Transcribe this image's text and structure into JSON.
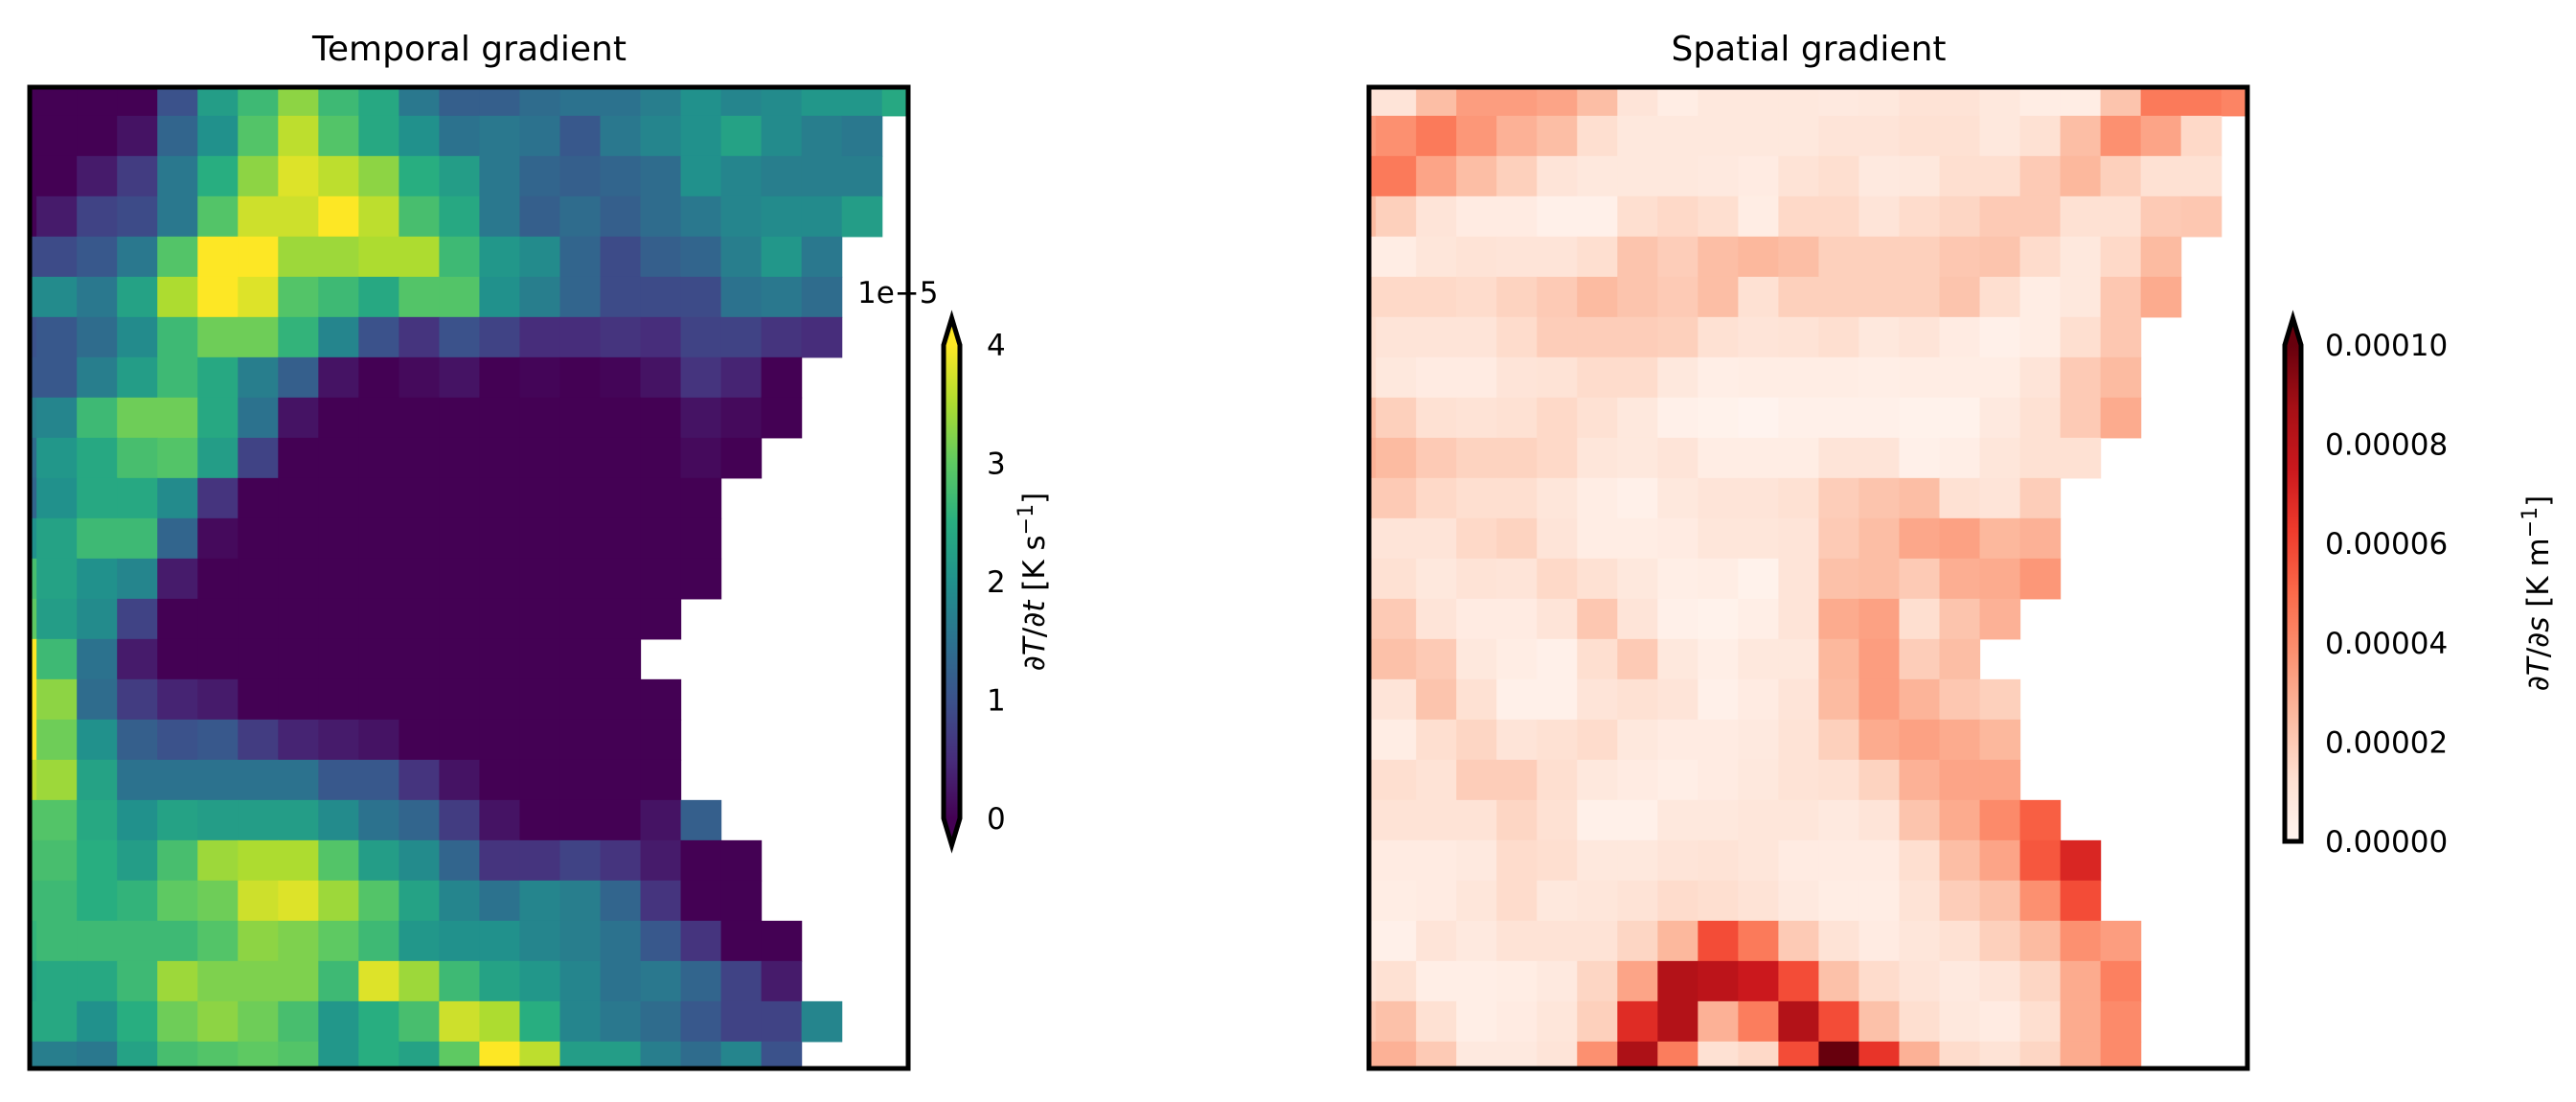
{
  "chart_data": [
    {
      "type": "heatmap",
      "title": "Temporal gradient",
      "colormap": "viridis",
      "value_multiplier": 1e-05,
      "vmin": 0,
      "vmax": 4,
      "colorbar": {
        "offset_text": "1e−5",
        "ticks": [
          0,
          1,
          2,
          3,
          4
        ],
        "tick_labels": [
          "0",
          "1",
          "2",
          "3",
          "4"
        ],
        "extend": "both",
        "label_parts": [
          "∂",
          "T",
          "/∂",
          "t",
          " [K s",
          "−1",
          "]"
        ]
      },
      "missing_color": "#ffffff",
      "rows": [
        [
          0,
          0,
          0,
          0,
          1.0,
          2.2,
          2.7,
          3.3,
          2.7,
          2.4,
          1.6,
          1.2,
          1.2,
          1.4,
          1.5,
          1.5,
          1.7,
          2.0,
          1.8,
          1.9,
          2.1,
          2.1,
          2.4
        ],
        [
          0,
          0,
          0,
          0.2,
          1.3,
          2.0,
          2.9,
          3.6,
          2.9,
          2.4,
          2.0,
          1.5,
          1.6,
          1.5,
          1.1,
          1.6,
          1.8,
          2.0,
          2.3,
          1.9,
          1.7,
          1.6,
          null
        ],
        [
          0,
          0,
          0.3,
          0.7,
          1.6,
          2.5,
          3.3,
          3.8,
          3.6,
          3.3,
          2.5,
          2.2,
          1.6,
          1.3,
          1.2,
          1.3,
          1.4,
          2.0,
          1.8,
          1.7,
          1.7,
          1.7,
          null
        ],
        [
          0,
          0.3,
          0.8,
          0.9,
          1.6,
          2.9,
          3.7,
          3.7,
          4.0,
          3.6,
          2.8,
          2.4,
          1.6,
          1.2,
          1.4,
          1.2,
          1.4,
          1.6,
          1.8,
          1.9,
          1.9,
          2.2,
          null
        ],
        [
          0.9,
          0.9,
          1.1,
          1.6,
          2.9,
          4.0,
          4.0,
          3.4,
          3.4,
          3.5,
          3.5,
          2.7,
          2.1,
          1.9,
          1.3,
          0.9,
          1.2,
          1.3,
          1.7,
          2.1,
          1.6,
          null,
          null
        ],
        [
          1.9,
          1.9,
          1.6,
          2.3,
          3.5,
          4.0,
          3.8,
          2.9,
          2.7,
          2.4,
          2.9,
          2.9,
          2.0,
          1.7,
          1.3,
          0.9,
          0.9,
          0.9,
          1.5,
          1.6,
          1.4,
          null,
          null
        ],
        [
          1.0,
          1.1,
          1.4,
          1.9,
          2.7,
          3.1,
          3.1,
          2.6,
          1.8,
          1.0,
          0.6,
          1.0,
          0.8,
          0.5,
          0.5,
          0.6,
          0.5,
          0.8,
          0.8,
          0.6,
          0.5,
          null,
          null
        ],
        [
          1.1,
          1.1,
          1.7,
          2.2,
          2.7,
          2.4,
          1.7,
          1.2,
          0.2,
          0,
          0.1,
          0.2,
          0,
          0.05,
          0,
          0.05,
          0.2,
          0.6,
          0.4,
          0,
          null,
          null,
          null
        ],
        [
          1.7,
          1.8,
          2.7,
          3.1,
          3.1,
          2.4,
          1.5,
          0.2,
          0,
          0,
          0,
          0,
          0,
          0,
          0,
          0,
          0,
          0.2,
          0.1,
          0,
          null,
          null,
          null
        ],
        [
          1.4,
          2.1,
          2.4,
          2.8,
          2.9,
          2.2,
          0.8,
          0,
          0,
          0,
          0,
          0,
          0,
          0,
          0,
          0,
          0,
          0.1,
          0,
          null,
          null,
          null,
          null
        ],
        [
          1.3,
          2.0,
          2.4,
          2.4,
          1.9,
          0.6,
          0,
          0,
          0,
          0,
          0,
          0,
          0,
          0,
          0,
          0,
          0,
          0,
          null,
          null,
          null,
          null,
          null
        ],
        [
          2.0,
          2.3,
          2.7,
          2.7,
          1.3,
          0.1,
          0,
          0,
          0,
          0,
          0,
          0,
          0,
          0,
          0,
          0,
          0,
          0,
          null,
          null,
          null,
          null,
          null
        ],
        [
          2.8,
          2.3,
          2.0,
          1.8,
          0.3,
          0,
          0,
          0,
          0,
          0,
          0,
          0,
          0,
          0,
          0,
          0,
          0,
          0,
          null,
          null,
          null,
          null,
          null
        ],
        [
          3.0,
          2.2,
          1.9,
          0.8,
          0,
          0,
          0,
          0,
          0,
          0,
          0,
          0,
          0,
          0,
          0,
          0,
          0,
          null,
          null,
          null,
          null,
          null,
          null
        ],
        [
          4.0,
          2.7,
          1.5,
          0.3,
          0,
          0,
          0,
          0,
          0,
          0,
          0,
          0,
          0,
          0,
          0,
          0,
          null,
          null,
          null,
          null,
          null,
          null,
          null
        ],
        [
          4.0,
          3.3,
          1.4,
          0.7,
          0.4,
          0.3,
          0,
          0,
          0,
          0,
          0,
          0,
          0,
          0,
          0,
          0,
          0,
          null,
          null,
          null,
          null,
          null,
          null
        ],
        [
          4.0,
          3.1,
          2.0,
          1.2,
          1.0,
          1.1,
          0.7,
          0.4,
          0.3,
          0.2,
          0,
          0,
          0,
          0,
          0,
          0,
          0,
          null,
          null,
          null,
          null,
          null,
          null
        ],
        [
          3.6,
          3.4,
          2.3,
          1.5,
          1.5,
          1.5,
          1.5,
          1.5,
          1.1,
          1.1,
          0.6,
          0.2,
          0,
          0,
          0,
          0,
          0,
          null,
          null,
          null,
          null,
          null,
          null
        ],
        [
          2.9,
          2.9,
          2.4,
          2.0,
          2.3,
          2.2,
          2.2,
          2.2,
          1.9,
          1.5,
          1.3,
          0.7,
          0.2,
          0,
          0,
          0,
          0.2,
          1.2,
          null,
          null,
          null,
          null,
          null
        ],
        [
          2.8,
          2.8,
          2.5,
          2.2,
          2.8,
          3.4,
          3.5,
          3.5,
          2.9,
          2.2,
          1.9,
          1.3,
          0.6,
          0.6,
          0.8,
          0.6,
          0.3,
          0,
          0,
          null,
          null,
          null,
          null
        ],
        [
          2.7,
          2.7,
          2.5,
          2.6,
          3.0,
          3.1,
          3.7,
          3.8,
          3.4,
          2.9,
          2.3,
          1.8,
          1.5,
          1.8,
          1.7,
          1.3,
          0.6,
          0,
          0,
          null,
          null,
          null,
          null
        ],
        [
          2.6,
          2.7,
          2.7,
          2.7,
          2.7,
          2.9,
          3.3,
          3.2,
          3.0,
          2.7,
          2.1,
          2.0,
          2.0,
          1.8,
          1.7,
          1.5,
          1.1,
          0.6,
          0,
          0,
          null,
          null,
          null
        ],
        [
          2.3,
          2.4,
          2.4,
          2.7,
          3.4,
          3.2,
          3.2,
          3.2,
          2.7,
          3.8,
          3.4,
          2.7,
          2.3,
          2.1,
          1.8,
          1.5,
          1.6,
          1.3,
          0.8,
          0.3,
          null,
          null,
          null
        ],
        [
          2.4,
          2.4,
          2.0,
          2.5,
          3.1,
          3.3,
          3.1,
          2.8,
          2.1,
          2.5,
          2.8,
          3.7,
          3.5,
          2.5,
          1.8,
          1.6,
          1.4,
          1.1,
          0.8,
          0.8,
          1.8,
          null,
          null
        ],
        [
          1.7,
          1.7,
          1.6,
          2.3,
          2.8,
          2.9,
          3.0,
          2.9,
          2.1,
          2.5,
          2.3,
          3.0,
          4.0,
          3.6,
          2.2,
          2.2,
          1.7,
          1.4,
          1.8,
          1.0,
          null,
          null,
          null
        ]
      ]
    },
    {
      "type": "heatmap",
      "title": "Spatial gradient",
      "colormap": "Reds",
      "value_multiplier": 1e-05,
      "vmin": 0,
      "vmax": 10,
      "colorbar": {
        "ticks": [
          0,
          2,
          4,
          6,
          8,
          10
        ],
        "tick_labels": [
          "0.00000",
          "0.00002",
          "0.00004",
          "0.00006",
          "0.00008",
          "0.00010"
        ],
        "extend": "max",
        "label_parts": [
          "∂",
          "T",
          "/∂",
          "s",
          " [K m",
          "−1",
          "]"
        ]
      },
      "missing_color": "#ffffff",
      "rows": [
        [
          1.0,
          1.0,
          2.4,
          3.4,
          3.4,
          3.2,
          2.4,
          1.0,
          0.5,
          0.8,
          0.8,
          0.8,
          0.7,
          0.8,
          1.1,
          1.1,
          0.8,
          0.5,
          0.5,
          2.2,
          4.5,
          4.5,
          4.2
        ],
        [
          3.5,
          3.8,
          4.5,
          3.6,
          2.8,
          2.4,
          1.3,
          0.8,
          0.8,
          0.8,
          0.8,
          0.8,
          1.0,
          1.0,
          1.2,
          1.2,
          0.8,
          1.2,
          2.4,
          3.8,
          3.2,
          1.5
        ],
        [
          4.5,
          4.5,
          3.2,
          2.4,
          1.8,
          1.0,
          0.8,
          0.8,
          0.8,
          0.7,
          0.6,
          1.1,
          1.3,
          0.7,
          0.8,
          1.3,
          1.3,
          2.0,
          2.6,
          1.8,
          1.2,
          1.2
        ],
        [
          2.5,
          1.8,
          1.0,
          0.6,
          0.6,
          0.3,
          0.3,
          1.3,
          1.5,
          1.3,
          0.5,
          1.5,
          1.5,
          1.0,
          1.4,
          1.6,
          2.0,
          2.0,
          1.2,
          1.2,
          2.0,
          2.1
        ],
        [
          0.5,
          0.5,
          0.9,
          1.1,
          1.0,
          1.0,
          1.3,
          2.2,
          1.9,
          2.4,
          2.6,
          2.4,
          1.8,
          1.8,
          1.8,
          2.1,
          2.2,
          1.4,
          0.8,
          1.5,
          2.5
        ],
        [
          1.5,
          1.5,
          1.5,
          1.4,
          1.7,
          2.0,
          2.5,
          2.2,
          2.0,
          2.4,
          1.2,
          1.8,
          1.8,
          1.8,
          1.8,
          2.2,
          1.3,
          0.5,
          0.8,
          2.1,
          3.0
        ],
        [
          1.3,
          1.0,
          1.0,
          1.0,
          1.4,
          1.9,
          1.9,
          1.9,
          1.8,
          1.2,
          1.0,
          1.1,
          1.3,
          0.8,
          1.0,
          0.6,
          0.3,
          0.5,
          1.3,
          2.1
        ],
        [
          1.3,
          0.8,
          0.6,
          0.6,
          1.0,
          1.1,
          1.4,
          1.4,
          0.8,
          0.4,
          0.5,
          0.5,
          0.5,
          0.4,
          0.5,
          0.5,
          0.5,
          1.0,
          2.0,
          2.5
        ],
        [
          2.5,
          1.8,
          1.2,
          1.1,
          1.2,
          1.5,
          1.2,
          0.8,
          0.3,
          0.2,
          0.1,
          0.3,
          0.3,
          0.3,
          0.2,
          0.2,
          0.7,
          1.2,
          2.0,
          3.0
        ],
        [
          2.8,
          2.5,
          2.0,
          1.7,
          1.7,
          1.5,
          0.9,
          0.8,
          1.0,
          0.5,
          0.5,
          0.5,
          1.0,
          1.0,
          0.3,
          0.4,
          0.9,
          1.2,
          1.2
        ],
        [
          2.0,
          2.0,
          1.5,
          1.3,
          1.3,
          0.9,
          0.5,
          0.3,
          0.8,
          1.0,
          1.0,
          1.2,
          1.9,
          2.2,
          2.4,
          1.2,
          1.0,
          1.9
        ],
        [
          1.0,
          1.0,
          1.0,
          1.5,
          1.7,
          1.0,
          0.5,
          0.5,
          0.6,
          0.9,
          0.9,
          1.0,
          2.0,
          2.4,
          3.1,
          3.3,
          2.6,
          2.8
        ],
        [
          1.2,
          1.2,
          0.8,
          1.1,
          1.0,
          1.5,
          1.2,
          0.8,
          0.4,
          0.5,
          0.2,
          1.0,
          2.3,
          2.4,
          2.0,
          2.9,
          3.0,
          3.6
        ],
        [
          2.0,
          2.0,
          1.0,
          0.6,
          0.6,
          1.0,
          2.1,
          1.0,
          0.3,
          0.2,
          0.4,
          1.0,
          3.0,
          3.3,
          1.3,
          2.2,
          2.8
        ],
        [
          2.3,
          2.3,
          2.0,
          0.8,
          0.5,
          0.3,
          1.3,
          2.0,
          0.8,
          0.4,
          0.8,
          0.8,
          2.6,
          3.4,
          1.9,
          2.4
        ],
        [
          1.0,
          1.0,
          2.2,
          1.2,
          0.3,
          0.3,
          1.0,
          1.2,
          1.0,
          0.3,
          0.6,
          1.0,
          2.5,
          3.4,
          2.7,
          2.1,
          1.8
        ],
        [
          0.5,
          0.5,
          1.3,
          1.6,
          1.0,
          1.2,
          1.4,
          0.8,
          0.6,
          0.6,
          0.7,
          1.1,
          1.8,
          3.0,
          3.3,
          3.0,
          2.6
        ],
        [
          1.3,
          1.3,
          1.1,
          1.9,
          1.9,
          1.3,
          0.8,
          0.6,
          0.4,
          0.6,
          0.8,
          1.1,
          1.2,
          1.7,
          2.8,
          3.2,
          3.2
        ],
        [
          1.1,
          1.1,
          1.1,
          1.1,
          1.6,
          1.2,
          0.3,
          0.3,
          0.8,
          0.8,
          0.9,
          0.9,
          0.7,
          1.0,
          2.2,
          3.0,
          4.0,
          5.3
        ],
        [
          0.6,
          0.6,
          0.6,
          0.7,
          1.4,
          1.3,
          0.8,
          0.8,
          1.0,
          1.1,
          0.9,
          0.6,
          0.6,
          0.6,
          1.3,
          2.4,
          3.2,
          5.5,
          7.0
        ],
        [
          0.5,
          0.5,
          0.6,
          0.9,
          1.4,
          0.8,
          0.9,
          1.1,
          1.4,
          1.3,
          1.1,
          0.7,
          0.5,
          0.5,
          1.1,
          1.9,
          2.3,
          3.8,
          5.8
        ],
        [
          0.3,
          0.3,
          1.0,
          0.7,
          1.1,
          1.1,
          1.1,
          1.6,
          2.6,
          5.8,
          4.5,
          2.0,
          1.1,
          0.6,
          0.9,
          1.2,
          1.8,
          2.5,
          3.8,
          3.4
        ],
        [
          1.0,
          1.2,
          0.4,
          0.4,
          0.5,
          0.7,
          1.6,
          3.2,
          8.3,
          8.0,
          7.5,
          5.8,
          2.3,
          1.4,
          1.0,
          0.7,
          1.0,
          1.6,
          3.0,
          4.3
        ],
        [
          2.0,
          2.3,
          1.2,
          0.4,
          0.6,
          0.9,
          1.8,
          6.8,
          8.3,
          2.8,
          4.4,
          8.3,
          5.8,
          2.3,
          1.3,
          0.8,
          0.6,
          1.3,
          3.0,
          4.0
        ],
        [
          2.8,
          2.8,
          2.0,
          0.7,
          0.7,
          1.0,
          3.8,
          8.5,
          4.4,
          1.2,
          1.5,
          5.8,
          10.0,
          6.5,
          2.8,
          1.4,
          1.1,
          1.6,
          3.0,
          4.0
        ]
      ]
    }
  ]
}
